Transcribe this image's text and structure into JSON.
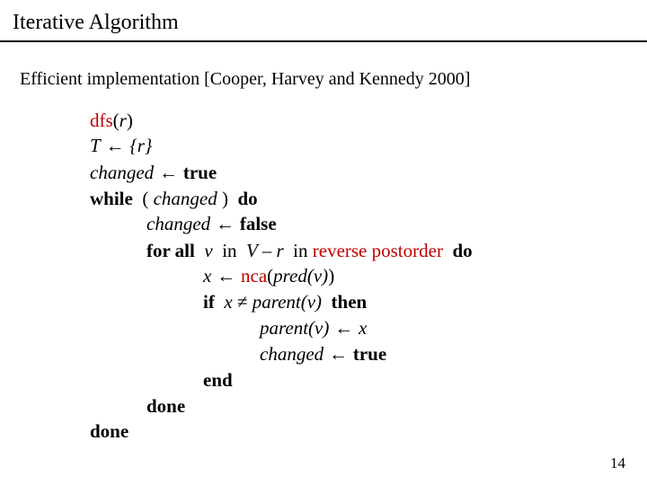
{
  "title": "Iterative Algorithm",
  "subtitle": "Efficient implementation [Cooper, Harvey and Kennedy 2000]",
  "page_number": "14",
  "colors": {
    "text": "#000000",
    "highlight": "#c00000",
    "background": "#ffffff",
    "rule": "#000000"
  },
  "code": {
    "l1_fn": "dfs",
    "l1_open": "(",
    "l1_var": "r",
    "l1_close": ")",
    "l2_T": "T",
    "l2_arr": " ← ",
    "l2_set": "{r}",
    "l3_chg": "changed",
    "l3_arr": " ← ",
    "l3_true": "true",
    "l4_while": "while",
    "l4_open": "  ( ",
    "l4_chg": "changed",
    "l4_close": " )  ",
    "l4_do": "do",
    "l5_pad": "            ",
    "l5_chg": "changed",
    "l5_arr": " ← ",
    "l5_false": "false",
    "l6_pad": "            ",
    "l6_forall": "for all",
    "l6_sp1": "  ",
    "l6_v": "v",
    "l6_sp2": "  ",
    "l6_in": "in",
    "l6_sp3": "  ",
    "l6_expr": "V – r",
    "l6_sp4": "  ",
    "l6_in2": "in",
    "l6_sp5": " ",
    "l6_rpo": "reverse postorder",
    "l6_sp6": "  ",
    "l6_do": "do",
    "l7_pad": "                        ",
    "l7_x": "x",
    "l7_arr": " ← ",
    "l7_nca": "nca",
    "l7_open": "(",
    "l7_predv": "pred(v)",
    "l7_close": ")",
    "l8_pad": "                        ",
    "l8_if": "if",
    "l8_sp1": "  ",
    "l8_x": "x",
    "l8_ne": " ≠ ",
    "l8_pv": "parent(v)",
    "l8_sp2": "  ",
    "l8_then": "then",
    "l9_pad": "                                    ",
    "l9_pv": "parent(v)",
    "l9_arr": " ← ",
    "l9_x": "x",
    "l10_pad": "                                    ",
    "l10_chg": "changed",
    "l10_arr": " ← ",
    "l10_true": "true",
    "l11_pad": "                        ",
    "l11_end": "end",
    "l12_pad": "            ",
    "l12_done": "done",
    "l13_done": "done"
  }
}
